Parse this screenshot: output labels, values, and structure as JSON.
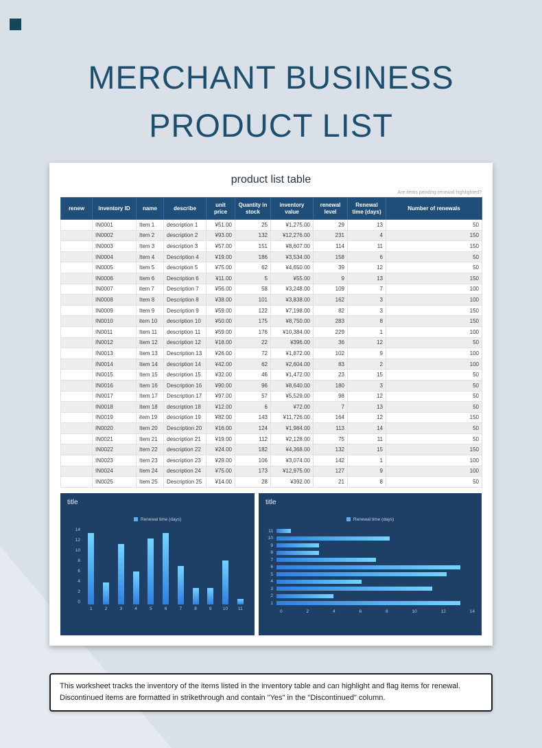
{
  "page_title": {
    "line1": "MERCHANT BUSINESS",
    "line2": "PRODUCT LIST"
  },
  "worksheet": {
    "heading": "product list table",
    "hint": "Are items pending renewal highlighted?"
  },
  "table": {
    "headers": [
      "renew",
      "Inventory ID",
      "name",
      "describe",
      "unit price",
      "Quantity in stock",
      "inventory value",
      "renewal level",
      "Renewal time (days)",
      "Number of renewals"
    ],
    "rows": [
      [
        "",
        "IN0001",
        "Item 1",
        "description 1",
        "¥51.00",
        "25",
        "¥1,275.00",
        "29",
        "13",
        "50"
      ],
      [
        "",
        "IN0002",
        "Item 2",
        "description 2",
        "¥93.00",
        "132",
        "¥12,276.00",
        "231",
        "4",
        "150"
      ],
      [
        "",
        "IN0003",
        "Item 3",
        "description 3",
        "¥57.00",
        "151",
        "¥8,607.00",
        "114",
        "11",
        "150"
      ],
      [
        "",
        "IN0004",
        "Item 4",
        "Description 4",
        "¥19.00",
        "186",
        "¥3,534.00",
        "158",
        "6",
        "50"
      ],
      [
        "",
        "IN0005",
        "Item 5",
        "description 5",
        "¥75.00",
        "62",
        "¥4,650.00",
        "39",
        "12",
        "50"
      ],
      [
        "",
        "IN0006",
        "Item 6",
        "Description 6",
        "¥11.00",
        "5",
        "¥55.00",
        "9",
        "13",
        "150"
      ],
      [
        "",
        "IN0007",
        "item 7",
        "Description 7",
        "¥56.00",
        "58",
        "¥3,248.00",
        "109",
        "7",
        "100"
      ],
      [
        "",
        "IN0008",
        "Item 8",
        "Description 8",
        "¥38.00",
        "101",
        "¥3,838.00",
        "162",
        "3",
        "100"
      ],
      [
        "",
        "IN0009",
        "Item 9",
        "Description 9",
        "¥59.00",
        "122",
        "¥7,198.00",
        "82",
        "3",
        "150"
      ],
      [
        "",
        "IN0010",
        "item 10",
        "description 10",
        "¥50.00",
        "175",
        "¥8,750.00",
        "283",
        "8",
        "150"
      ],
      [
        "",
        "IN0011",
        "Item 11",
        "description 11",
        "¥59.00",
        "176",
        "¥10,384.00",
        "229",
        "1",
        "100"
      ],
      [
        "",
        "IN0012",
        "Item 12",
        "description 12",
        "¥18.00",
        "22",
        "¥396.00",
        "36",
        "12",
        "50"
      ],
      [
        "",
        "IN0013",
        "Item 13",
        "Description 13",
        "¥26.00",
        "72",
        "¥1,872.00",
        "102",
        "9",
        "100"
      ],
      [
        "",
        "IN0014",
        "Item 14",
        "description 14",
        "¥42.00",
        "62",
        "¥2,604.00",
        "83",
        "2",
        "100"
      ],
      [
        "",
        "IN0015",
        "Item 15",
        "description 15",
        "¥32.00",
        "46",
        "¥1,472.00",
        "23",
        "15",
        "50"
      ],
      [
        "",
        "IN0016",
        "Item 16",
        "Description 16",
        "¥90.00",
        "96",
        "¥8,640.00",
        "180",
        "3",
        "50"
      ],
      [
        "",
        "IN0017",
        "Item 17",
        "Description 17",
        "¥97.00",
        "57",
        "¥5,529.00",
        "98",
        "12",
        "50"
      ],
      [
        "",
        "IN0018",
        "Item 18",
        "description 18",
        "¥12.00",
        "6",
        "¥72.00",
        "7",
        "13",
        "50"
      ],
      [
        "",
        "IN0019",
        "item 19",
        "description 19",
        "¥82.00",
        "143",
        "¥11,726.00",
        "164",
        "12",
        "150"
      ],
      [
        "",
        "IN0020",
        "Item 20",
        "Description 20",
        "¥16.00",
        "124",
        "¥1,984.00",
        "113",
        "14",
        "50"
      ],
      [
        "",
        "IN0021",
        "Item 21",
        "description 21",
        "¥19.00",
        "112",
        "¥2,128.00",
        "75",
        "11",
        "50"
      ],
      [
        "",
        "IN0022",
        "Item 22",
        "description 22",
        "¥24.00",
        "182",
        "¥4,368.00",
        "132",
        "15",
        "150"
      ],
      [
        "",
        "IN0023",
        "Item 23",
        "description 23",
        "¥29.00",
        "106",
        "¥3,074.00",
        "142",
        "1",
        "100"
      ],
      [
        "",
        "IN0024",
        "Item 24",
        "description 24",
        "¥75.00",
        "173",
        "¥12,975.00",
        "127",
        "9",
        "100"
      ],
      [
        "",
        "IN0025",
        "Item 25",
        "Description 25",
        "¥14.00",
        "28",
        "¥392.00",
        "21",
        "8",
        "50"
      ]
    ]
  },
  "chart_data": [
    {
      "type": "bar",
      "title": "title",
      "legend": [
        "Renewal time (days)"
      ],
      "categories": [
        "1",
        "2",
        "3",
        "4",
        "5",
        "6",
        "7",
        "8",
        "9",
        "10",
        "11"
      ],
      "values": [
        13,
        4,
        11,
        6,
        12,
        13,
        7,
        3,
        3,
        8,
        1
      ],
      "xlabel": "",
      "ylabel": "",
      "ylim": [
        0,
        14
      ],
      "yticks": [
        0,
        2,
        4,
        6,
        8,
        10,
        12,
        14
      ],
      "grid": false,
      "legend_position": "top-center"
    },
    {
      "type": "horizontal-bar",
      "title": "title",
      "legend": [
        "Renewal time (days)"
      ],
      "categories": [
        "1",
        "2",
        "3",
        "4",
        "5",
        "6",
        "7",
        "8",
        "9",
        "10",
        "11"
      ],
      "values": [
        13,
        4,
        11,
        6,
        12,
        13,
        7,
        3,
        3,
        8,
        1
      ],
      "xlabel": "",
      "ylabel": "",
      "xlim": [
        0,
        14
      ],
      "xticks": [
        0,
        2,
        4,
        6,
        8,
        10,
        12,
        14
      ],
      "grid": false,
      "legend_position": "top-center"
    }
  ],
  "footer": {
    "line1": "This worksheet tracks the inventory of the items listed in the inventory table and can highlight and flag items for renewal.",
    "line2": "Discontinued items are formatted in strikethrough and contain \"Yes\" in the \"Discontinued\" column."
  },
  "colors": {
    "page_bg": "#d9e0e8",
    "title_text": "#1d4e6e",
    "table_header_bg": "#1f4e79",
    "row_stripe": "#ededed",
    "chart_bg": "#1e3f66",
    "bar_light": "#74d4ff",
    "bar_dark": "#2f7fe0",
    "legend_swatch": "#5ab1f0",
    "corner_accent": "#15475a"
  }
}
